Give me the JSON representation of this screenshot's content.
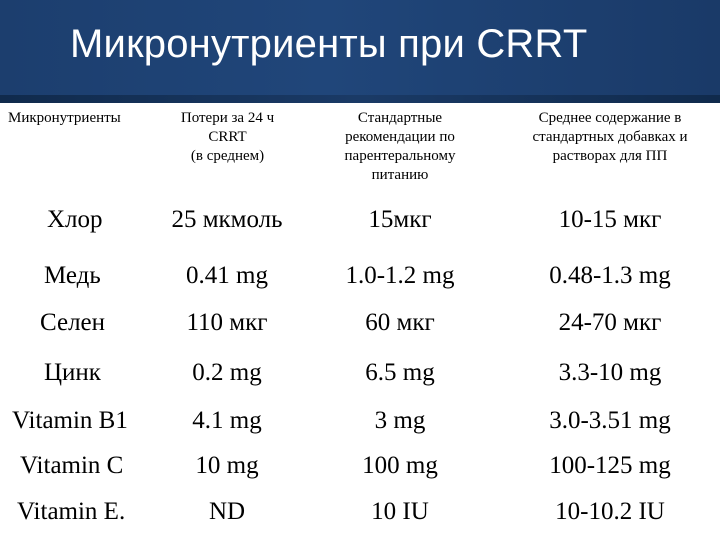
{
  "title": "Микронутриенты при CRRT",
  "table": {
    "headers": [
      [
        "Микронутриенты"
      ],
      [
        "Потери за 24 ч",
        "CRRT",
        "(в среднем)"
      ],
      [
        "Стандартные",
        "рекомендации по",
        "парентеральному",
        "питанию"
      ],
      [
        "Среднее содержание в",
        "стандартных добавках и",
        "растворах для ПП"
      ]
    ],
    "rows": [
      [
        "Хлор",
        "25 мкмоль",
        "15мкг",
        "10-15 мкг"
      ],
      [
        "Медь",
        "0.41 mg",
        "1.0-1.2 mg",
        "0.48-1.3 mg"
      ],
      [
        "Селен",
        "110 мкг",
        "60 мкг",
        "24-70 мкг"
      ],
      [
        "Цинк",
        "0.2 mg",
        "6.5 mg",
        "3.3-10 mg"
      ],
      [
        "Vitamin B1",
        "4.1 mg",
        "3 mg",
        "3.0-3.51 mg"
      ],
      [
        "Vitamin C",
        "10 mg",
        "100 mg",
        "100-125 mg"
      ],
      [
        "Vitamin E.",
        "ND",
        "10 IU",
        "10-10.2 IU"
      ]
    ]
  },
  "colors": {
    "banner": "#1f4478",
    "text": "#000000",
    "title": "#ffffff"
  }
}
